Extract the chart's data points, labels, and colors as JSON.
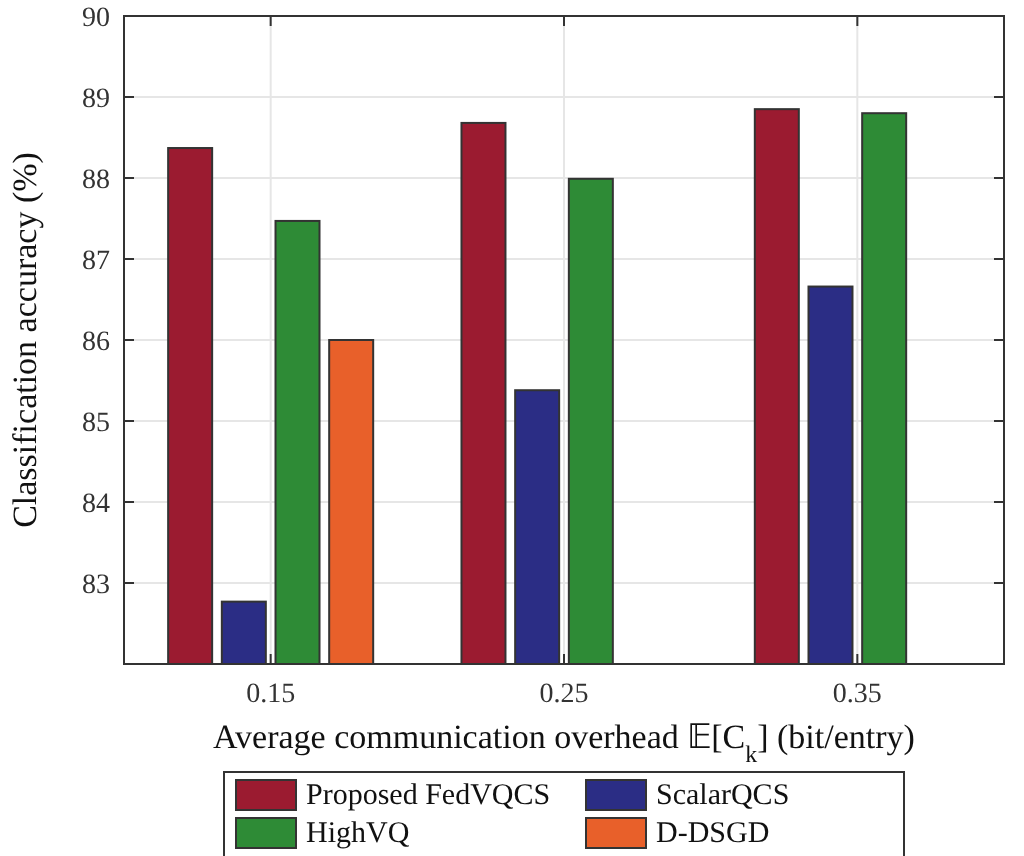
{
  "chart_data": {
    "type": "bar",
    "xlabel": "Average communication overhead 𝔼[C$_{k}$] (bit/entry)",
    "ylabel": "Classification accuracy (%)",
    "categories": [
      "0.15",
      "0.25",
      "0.35"
    ],
    "series": [
      {
        "name": "Proposed FedVQCS",
        "color": "#9b1b30",
        "values": [
          88.37,
          88.68,
          88.85
        ]
      },
      {
        "name": "ScalarQCS",
        "color": "#2b2d85",
        "values": [
          82.77,
          85.38,
          86.66
        ]
      },
      {
        "name": "HighVQ",
        "color": "#2e8b36",
        "values": [
          87.47,
          87.99,
          88.8
        ]
      },
      {
        "name": "D-DSGD",
        "color": "#e8602a",
        "values": [
          86.0,
          null,
          null
        ]
      }
    ],
    "ylim": [
      82,
      90
    ],
    "yticks": [
      83,
      84,
      85,
      86,
      87,
      88,
      89,
      90
    ],
    "grid": true,
    "legend": "bottom"
  }
}
